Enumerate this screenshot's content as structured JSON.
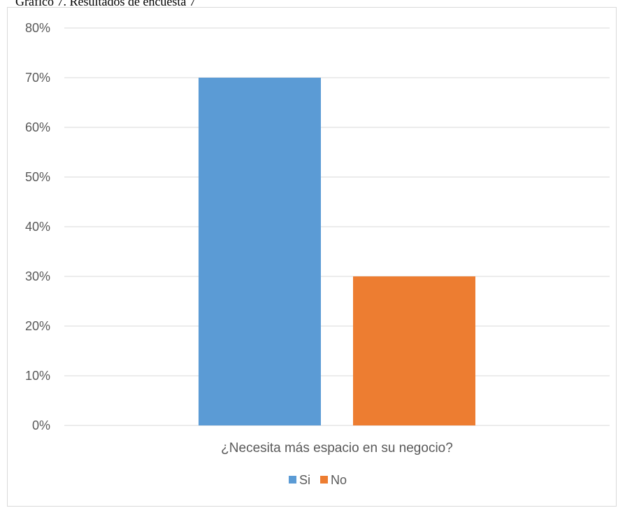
{
  "caption": "Gráfico 7. Resultados de encuesta 7",
  "chart_data": {
    "type": "bar",
    "categories": [
      "¿Necesita más espacio en su negocio?"
    ],
    "series": [
      {
        "name": "Si",
        "values": [
          0.7
        ],
        "color": "#5b9bd5"
      },
      {
        "name": "No",
        "values": [
          0.3
        ],
        "color": "#ed7d31"
      }
    ],
    "xlabel": "¿Necesita más espacio en su negocio?",
    "ylim": [
      0,
      0.8
    ],
    "yticks": [
      "0%",
      "10%",
      "20%",
      "30%",
      "40%",
      "50%",
      "60%",
      "70%",
      "80%"
    ],
    "grid": true,
    "legend_position": "bottom",
    "gridline_color": "#d9d9d9"
  }
}
